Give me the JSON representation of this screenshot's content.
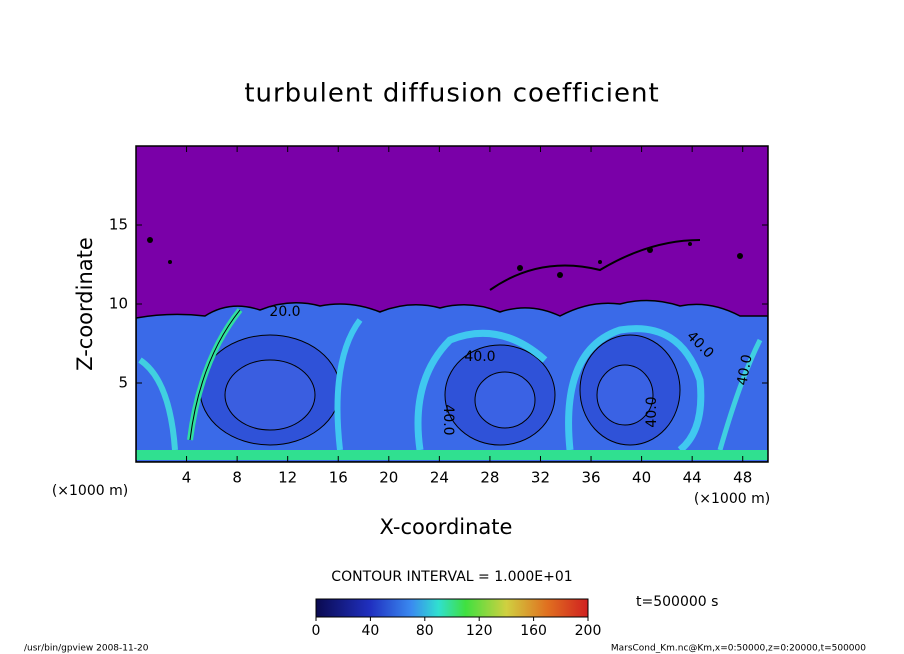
{
  "chart_data": {
    "type": "contour",
    "title": "turbulent diffusion coefficient",
    "x_label": "X-coordinate",
    "y_label": "Z-coordinate",
    "x_unit": "(×1000 m)",
    "y_unit": "(×1000 m)",
    "xlim": [
      0,
      50
    ],
    "xticks": [
      4,
      8,
      12,
      16,
      20,
      24,
      28,
      32,
      36,
      40,
      44,
      48
    ],
    "ylim": [
      0,
      20
    ],
    "yticks": [
      5,
      10,
      15
    ],
    "contour_labels": [
      "20.0",
      "40.0",
      "40.0",
      "40.0",
      "40.0",
      "40.0"
    ],
    "contour_interval": "CONTOUR INTERVAL = 1.000E+01",
    "colorbar": {
      "lim": [
        0,
        200
      ],
      "ticks": [
        0,
        40,
        80,
        120,
        160,
        200
      ]
    },
    "time_label": "t=500000 s",
    "footer_left": "/usr/bin/gpview  2008-11-20",
    "footer_right": "MarsCond_Km.nc@Km,x=0:50000,z=0:20000,t=500000"
  }
}
